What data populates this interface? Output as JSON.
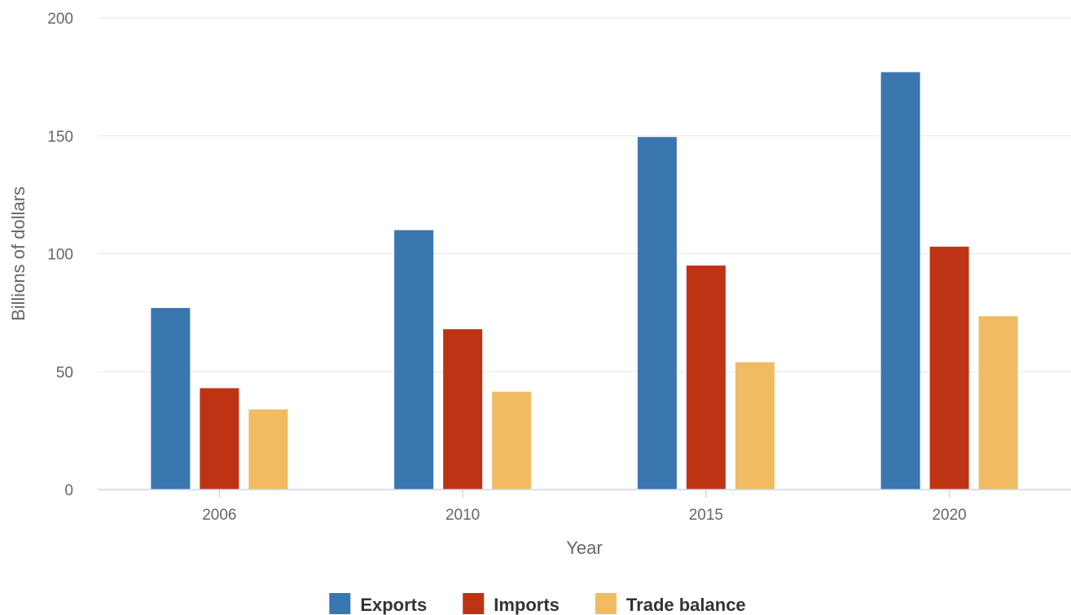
{
  "chart_data": {
    "type": "bar",
    "categories": [
      "2006",
      "2010",
      "2015",
      "2020"
    ],
    "series": [
      {
        "name": "Exports",
        "color": "#3a76b0",
        "values": [
          77,
          110,
          149.5,
          177
        ]
      },
      {
        "name": "Imports",
        "color": "#bf3315",
        "values": [
          43,
          68,
          95,
          103
        ]
      },
      {
        "name": "Trade balance",
        "color": "#f0bb63",
        "values": [
          34,
          41.5,
          54,
          73.5
        ]
      }
    ],
    "xlabel": "Year",
    "ylabel": "Billions of dollars",
    "ylim": [
      0,
      200
    ],
    "yticks": [
      0,
      50,
      100,
      150,
      200
    ],
    "grid": true,
    "legend_position": "bottom"
  }
}
